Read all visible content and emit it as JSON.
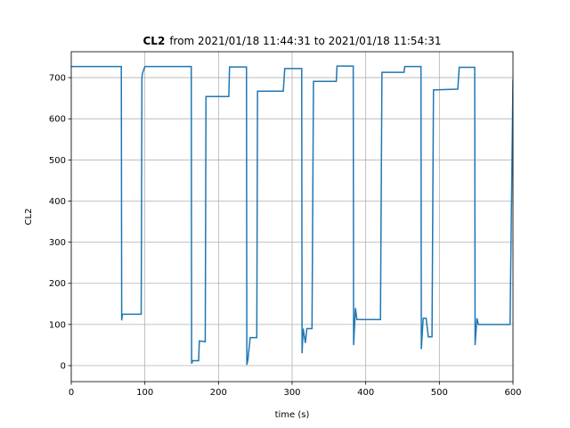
{
  "chart_data": {
    "type": "line",
    "title": [
      "CL2",
      "from 2021/01/18 11:44:31 to 2021/01/18 11:54:31"
    ],
    "xlabel": "time (s)",
    "ylabel": "CL2",
    "x": [
      0,
      68,
      68.5,
      69.5,
      95,
      96,
      97,
      100,
      163,
      163.5,
      165,
      173,
      174,
      182,
      183,
      214,
      215,
      238,
      238.5,
      240,
      243,
      252,
      253,
      288,
      290,
      313,
      313.5,
      315,
      318,
      320,
      327,
      329,
      360,
      361,
      383,
      383.5,
      386,
      388,
      420,
      422,
      452,
      453,
      475,
      475.5,
      478,
      482,
      485,
      490,
      492,
      525,
      527,
      548,
      548.5,
      551,
      553,
      596,
      600
    ],
    "series": [
      {
        "name": "CL2",
        "color": "#1f77b4",
        "values": [
          727,
          727,
          110,
          125,
          125,
          700,
          712,
          727,
          727,
          5,
          12,
          12,
          60,
          58,
          654,
          654,
          726,
          726,
          2,
          15,
          68,
          68,
          667,
          667,
          722,
          722,
          30,
          90,
          55,
          90,
          90,
          691,
          691,
          728,
          728,
          50,
          140,
          112,
          112,
          713,
          713,
          727,
          727,
          40,
          115,
          115,
          70,
          70,
          670,
          672,
          725,
          725,
          50,
          115,
          100,
          100,
          695
        ]
      }
    ],
    "xlim": [
      0,
      600
    ],
    "ylim": [
      -39,
      763
    ],
    "xticks": [
      0,
      100,
      200,
      300,
      400,
      500,
      600
    ],
    "yticks": [
      0,
      100,
      200,
      300,
      400,
      500,
      600,
      700
    ],
    "grid": true
  }
}
